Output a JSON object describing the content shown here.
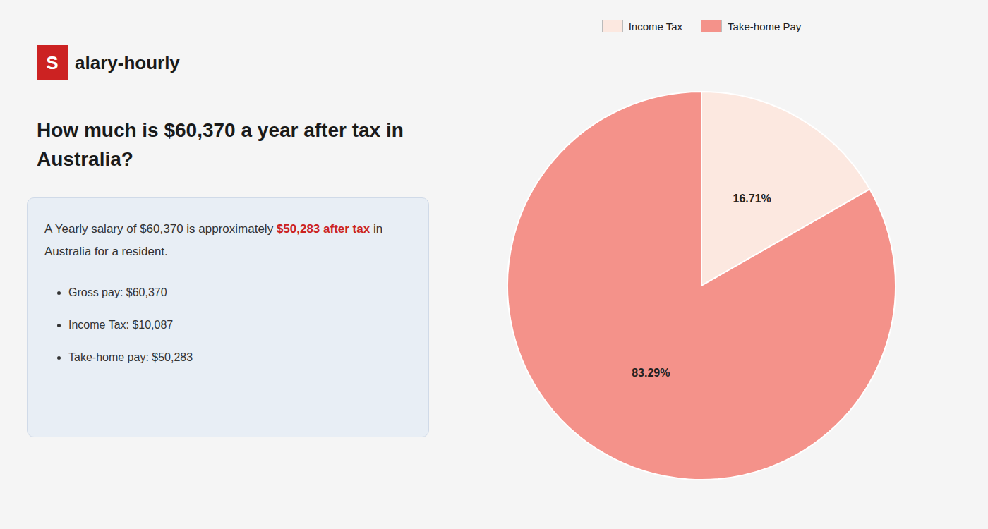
{
  "chart_data": {
    "type": "pie",
    "title": "How much is $60,370 a year after tax in Australia?",
    "categories": [
      "Income Tax",
      "Take-home Pay"
    ],
    "values": [
      16.71,
      83.29
    ],
    "value_labels": [
      "16.71%",
      "83.29%"
    ],
    "colors": [
      "#fce8e0",
      "#f4928a"
    ],
    "data_labels": true,
    "legend": "top",
    "annotations": [
      {
        "text": "S",
        "color": "#ffffff"
      },
      {
        "text": "alary-hourly",
        "color": "#1a1a1a"
      },
      {
        "text": "A Yearly salary of $60,370 is approximately ",
        "color": "#333333"
      },
      {
        "text": "$50,283 after tax",
        "color": "#cc2222"
      },
      {
        "text": " in",
        "color": "#333333"
      },
      {
        "text": "Australia for a resident.",
        "color": "#333333"
      },
      {
        "text": "Gross pay: $60,370",
        "color": "#333333"
      },
      {
        "text": "Income Tax: $10,087",
        "color": "#333333"
      },
      {
        "text": "Take-home pay: $50,283",
        "color": "#333333"
      }
    ]
  }
}
